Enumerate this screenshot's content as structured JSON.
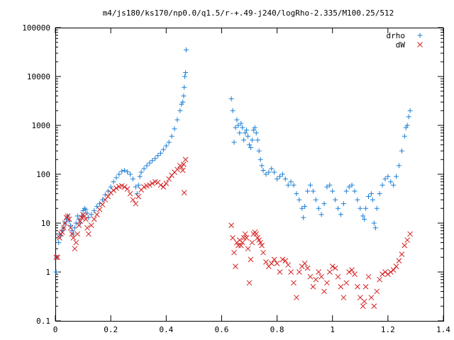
{
  "chart_data": {
    "type": "scatter",
    "title": "m4/js180/ks170/np0.0/q1.5/r-+.49-j240/logRho-2.335/M100.25/512",
    "xlabel": "",
    "ylabel": "",
    "xlim": [
      0,
      1.4
    ],
    "ylim": [
      0.1,
      100000
    ],
    "yscale": "log",
    "grid": false,
    "legend_position": "top-right",
    "x_ticks": [
      0,
      0.2,
      0.4,
      0.6,
      0.8,
      1,
      1.2,
      1.4
    ],
    "x_tick_labels": [
      "0",
      "0.2",
      "0.4",
      "0.6",
      "0.8",
      "1",
      "1.2",
      "1.4"
    ],
    "y_ticks": [
      0.1,
      1,
      10,
      100,
      1000,
      10000,
      100000
    ],
    "y_tick_labels": [
      "0.1",
      "1",
      "10",
      "100",
      "1000",
      "10000",
      "100000"
    ],
    "series": [
      {
        "name": "drho",
        "marker": "plus",
        "color": "#1a7fd6",
        "points": [
          [
            0.003,
            1.0
          ],
          [
            0.005,
            2.0
          ],
          [
            0.012,
            4.0
          ],
          [
            0.015,
            6.0
          ],
          [
            0.02,
            5.5
          ],
          [
            0.025,
            7.0
          ],
          [
            0.03,
            8.0
          ],
          [
            0.035,
            10.0
          ],
          [
            0.04,
            12.0
          ],
          [
            0.045,
            14.0
          ],
          [
            0.05,
            11.0
          ],
          [
            0.055,
            9.0
          ],
          [
            0.06,
            7.0
          ],
          [
            0.065,
            6.0
          ],
          [
            0.07,
            8.0
          ],
          [
            0.075,
            10.0
          ],
          [
            0.08,
            14.0
          ],
          [
            0.085,
            12.0
          ],
          [
            0.09,
            10.0
          ],
          [
            0.095,
            14.0
          ],
          [
            0.1,
            18.0
          ],
          [
            0.105,
            20.0
          ],
          [
            0.11,
            19.0
          ],
          [
            0.115,
            16.0
          ],
          [
            0.12,
            13.0
          ],
          [
            0.13,
            15.0
          ],
          [
            0.14,
            18.0
          ],
          [
            0.15,
            22.0
          ],
          [
            0.16,
            25.0
          ],
          [
            0.17,
            30.0
          ],
          [
            0.18,
            38.0
          ],
          [
            0.19,
            45.0
          ],
          [
            0.2,
            55.0
          ],
          [
            0.21,
            70.0
          ],
          [
            0.22,
            85.0
          ],
          [
            0.23,
            100.0
          ],
          [
            0.24,
            115.0
          ],
          [
            0.25,
            120.0
          ],
          [
            0.26,
            112.0
          ],
          [
            0.27,
            100.0
          ],
          [
            0.28,
            80.0
          ],
          [
            0.29,
            55.0
          ],
          [
            0.295,
            40.0
          ],
          [
            0.3,
            60.0
          ],
          [
            0.305,
            90.0
          ],
          [
            0.31,
            110.0
          ],
          [
            0.32,
            130.0
          ],
          [
            0.33,
            150.0
          ],
          [
            0.34,
            170.0
          ],
          [
            0.35,
            190.0
          ],
          [
            0.36,
            210.0
          ],
          [
            0.37,
            240.0
          ],
          [
            0.38,
            270.0
          ],
          [
            0.39,
            320.0
          ],
          [
            0.4,
            380.0
          ],
          [
            0.41,
            450.0
          ],
          [
            0.42,
            600.0
          ],
          [
            0.43,
            850.0
          ],
          [
            0.44,
            1300.0
          ],
          [
            0.45,
            2000.0
          ],
          [
            0.455,
            2700.0
          ],
          [
            0.46,
            3000.0
          ],
          [
            0.463,
            4000.0
          ],
          [
            0.465,
            6000.0
          ],
          [
            0.467,
            10000.0
          ],
          [
            0.47,
            12000.0
          ],
          [
            0.472,
            35000.0
          ],
          [
            0.635,
            3500.0
          ],
          [
            0.64,
            2000.0
          ],
          [
            0.645,
            450.0
          ],
          [
            0.65,
            900.0
          ],
          [
            0.655,
            1300.0
          ],
          [
            0.66,
            1000.0
          ],
          [
            0.665,
            700.0
          ],
          [
            0.67,
            1100.0
          ],
          [
            0.675,
            900.0
          ],
          [
            0.68,
            500.0
          ],
          [
            0.685,
            700.0
          ],
          [
            0.69,
            800.0
          ],
          [
            0.695,
            600.0
          ],
          [
            0.7,
            400.0
          ],
          [
            0.705,
            350.0
          ],
          [
            0.71,
            500.0
          ],
          [
            0.715,
            800.0
          ],
          [
            0.72,
            900.0
          ],
          [
            0.725,
            700.0
          ],
          [
            0.73,
            500.0
          ],
          [
            0.735,
            300.0
          ],
          [
            0.74,
            200.0
          ],
          [
            0.745,
            150.0
          ],
          [
            0.75,
            120.0
          ],
          [
            0.76,
            100.0
          ],
          [
            0.77,
            110.0
          ],
          [
            0.78,
            130.0
          ],
          [
            0.79,
            110.0
          ],
          [
            0.8,
            80.0
          ],
          [
            0.81,
            90.0
          ],
          [
            0.82,
            100.0
          ],
          [
            0.83,
            80.0
          ],
          [
            0.84,
            60.0
          ],
          [
            0.85,
            70.0
          ],
          [
            0.86,
            60.0
          ],
          [
            0.87,
            40.0
          ],
          [
            0.88,
            30.0
          ],
          [
            0.89,
            20.0
          ],
          [
            0.895,
            13.0
          ],
          [
            0.9,
            22.0
          ],
          [
            0.91,
            45.0
          ],
          [
            0.92,
            60.0
          ],
          [
            0.93,
            45.0
          ],
          [
            0.94,
            30.0
          ],
          [
            0.95,
            20.0
          ],
          [
            0.96,
            15.0
          ],
          [
            0.97,
            25.0
          ],
          [
            0.98,
            55.0
          ],
          [
            0.99,
            60.0
          ],
          [
            1.0,
            45.0
          ],
          [
            1.01,
            30.0
          ],
          [
            1.02,
            20.0
          ],
          [
            1.03,
            15.0
          ],
          [
            1.04,
            25.0
          ],
          [
            1.05,
            45.0
          ],
          [
            1.06,
            55.0
          ],
          [
            1.07,
            60.0
          ],
          [
            1.08,
            45.0
          ],
          [
            1.09,
            30.0
          ],
          [
            1.1,
            20.0
          ],
          [
            1.11,
            14.0
          ],
          [
            1.115,
            12.0
          ],
          [
            1.12,
            20.0
          ],
          [
            1.13,
            35.0
          ],
          [
            1.14,
            40.0
          ],
          [
            1.145,
            30.0
          ],
          [
            1.15,
            10.0
          ],
          [
            1.155,
            8.0
          ],
          [
            1.16,
            20.0
          ],
          [
            1.17,
            40.0
          ],
          [
            1.18,
            60.0
          ],
          [
            1.19,
            80.0
          ],
          [
            1.2,
            90.0
          ],
          [
            1.21,
            70.0
          ],
          [
            1.22,
            60.0
          ],
          [
            1.23,
            90.0
          ],
          [
            1.24,
            150.0
          ],
          [
            1.25,
            300.0
          ],
          [
            1.26,
            600.0
          ],
          [
            1.265,
            900.0
          ],
          [
            1.27,
            1000.0
          ],
          [
            1.275,
            1500.0
          ],
          [
            1.28,
            2000.0
          ]
        ]
      },
      {
        "name": "dW",
        "marker": "cross",
        "color": "#d42020",
        "points": [
          [
            0.003,
            2.0
          ],
          [
            0.008,
            2.0
          ],
          [
            0.015,
            5.0
          ],
          [
            0.02,
            6.0
          ],
          [
            0.025,
            6.5
          ],
          [
            0.03,
            8.0
          ],
          [
            0.035,
            10.0
          ],
          [
            0.04,
            13.0
          ],
          [
            0.045,
            14.0
          ],
          [
            0.05,
            12.0
          ],
          [
            0.055,
            8.0
          ],
          [
            0.06,
            6.0
          ],
          [
            0.065,
            5.0
          ],
          [
            0.07,
            3.0
          ],
          [
            0.075,
            4.0
          ],
          [
            0.08,
            6.0
          ],
          [
            0.085,
            9.0
          ],
          [
            0.09,
            11.0
          ],
          [
            0.095,
            13.0
          ],
          [
            0.1,
            15.0
          ],
          [
            0.105,
            14.0
          ],
          [
            0.11,
            12.0
          ],
          [
            0.115,
            8.0
          ],
          [
            0.12,
            6.0
          ],
          [
            0.13,
            9.0
          ],
          [
            0.14,
            12.0
          ],
          [
            0.15,
            15.0
          ],
          [
            0.16,
            19.0
          ],
          [
            0.17,
            24.0
          ],
          [
            0.18,
            30.0
          ],
          [
            0.19,
            35.0
          ],
          [
            0.2,
            42.0
          ],
          [
            0.21,
            47.0
          ],
          [
            0.22,
            52.0
          ],
          [
            0.23,
            56.0
          ],
          [
            0.24,
            58.0
          ],
          [
            0.25,
            55.0
          ],
          [
            0.26,
            50.0
          ],
          [
            0.27,
            40.0
          ],
          [
            0.28,
            30.0
          ],
          [
            0.29,
            25.0
          ],
          [
            0.3,
            35.0
          ],
          [
            0.31,
            48.0
          ],
          [
            0.32,
            55.0
          ],
          [
            0.33,
            58.0
          ],
          [
            0.34,
            60.0
          ],
          [
            0.35,
            65.0
          ],
          [
            0.36,
            70.0
          ],
          [
            0.37,
            68.0
          ],
          [
            0.38,
            60.0
          ],
          [
            0.39,
            55.0
          ],
          [
            0.4,
            65.0
          ],
          [
            0.41,
            80.0
          ],
          [
            0.42,
            95.0
          ],
          [
            0.43,
            110.0
          ],
          [
            0.44,
            125.0
          ],
          [
            0.45,
            150.0
          ],
          [
            0.455,
            140.0
          ],
          [
            0.46,
            120.0
          ],
          [
            0.463,
            160.0
          ],
          [
            0.465,
            42.0
          ],
          [
            0.47,
            200.0
          ],
          [
            0.635,
            9.0
          ],
          [
            0.64,
            5.0
          ],
          [
            0.645,
            2.5
          ],
          [
            0.65,
            1.3
          ],
          [
            0.655,
            4.0
          ],
          [
            0.66,
            3.5
          ],
          [
            0.665,
            4.5
          ],
          [
            0.67,
            3.5
          ],
          [
            0.675,
            4.0
          ],
          [
            0.68,
            5.0
          ],
          [
            0.685,
            6.0
          ],
          [
            0.69,
            5.0
          ],
          [
            0.695,
            3.0
          ],
          [
            0.7,
            0.6
          ],
          [
            0.705,
            1.8
          ],
          [
            0.71,
            4.0
          ],
          [
            0.715,
            6.0
          ],
          [
            0.72,
            6.5
          ],
          [
            0.725,
            6.0
          ],
          [
            0.73,
            5.0
          ],
          [
            0.735,
            4.5
          ],
          [
            0.74,
            4.0
          ],
          [
            0.745,
            3.5
          ],
          [
            0.75,
            2.5
          ],
          [
            0.76,
            1.6
          ],
          [
            0.77,
            1.3
          ],
          [
            0.78,
            1.5
          ],
          [
            0.79,
            1.8
          ],
          [
            0.8,
            1.5
          ],
          [
            0.81,
            1.0
          ],
          [
            0.82,
            1.8
          ],
          [
            0.83,
            1.7
          ],
          [
            0.84,
            1.4
          ],
          [
            0.85,
            1.0
          ],
          [
            0.86,
            0.6
          ],
          [
            0.87,
            0.3
          ],
          [
            0.88,
            1.0
          ],
          [
            0.89,
            1.3
          ],
          [
            0.9,
            1.5
          ],
          [
            0.91,
            1.2
          ],
          [
            0.92,
            0.8
          ],
          [
            0.93,
            0.5
          ],
          [
            0.94,
            0.7
          ],
          [
            0.95,
            1.0
          ],
          [
            0.96,
            0.8
          ],
          [
            0.97,
            0.4
          ],
          [
            0.98,
            0.6
          ],
          [
            0.99,
            1.0
          ],
          [
            1.0,
            1.3
          ],
          [
            1.01,
            1.2
          ],
          [
            1.02,
            0.8
          ],
          [
            1.03,
            0.5
          ],
          [
            1.04,
            0.3
          ],
          [
            1.05,
            0.6
          ],
          [
            1.06,
            1.0
          ],
          [
            1.07,
            1.1
          ],
          [
            1.08,
            0.9
          ],
          [
            1.09,
            0.5
          ],
          [
            1.1,
            0.3
          ],
          [
            1.11,
            0.2
          ],
          [
            1.115,
            0.25
          ],
          [
            1.12,
            0.5
          ],
          [
            1.13,
            0.8
          ],
          [
            1.14,
            0.3
          ],
          [
            1.15,
            0.2
          ],
          [
            1.16,
            0.4
          ],
          [
            1.17,
            0.7
          ],
          [
            1.18,
            0.9
          ],
          [
            1.19,
            1.0
          ],
          [
            1.2,
            0.9
          ],
          [
            1.21,
            1.0
          ],
          [
            1.22,
            1.1
          ],
          [
            1.23,
            1.3
          ],
          [
            1.24,
            1.7
          ],
          [
            1.25,
            2.3
          ],
          [
            1.26,
            3.5
          ],
          [
            1.27,
            4.5
          ],
          [
            1.28,
            6.0
          ]
        ]
      }
    ]
  }
}
